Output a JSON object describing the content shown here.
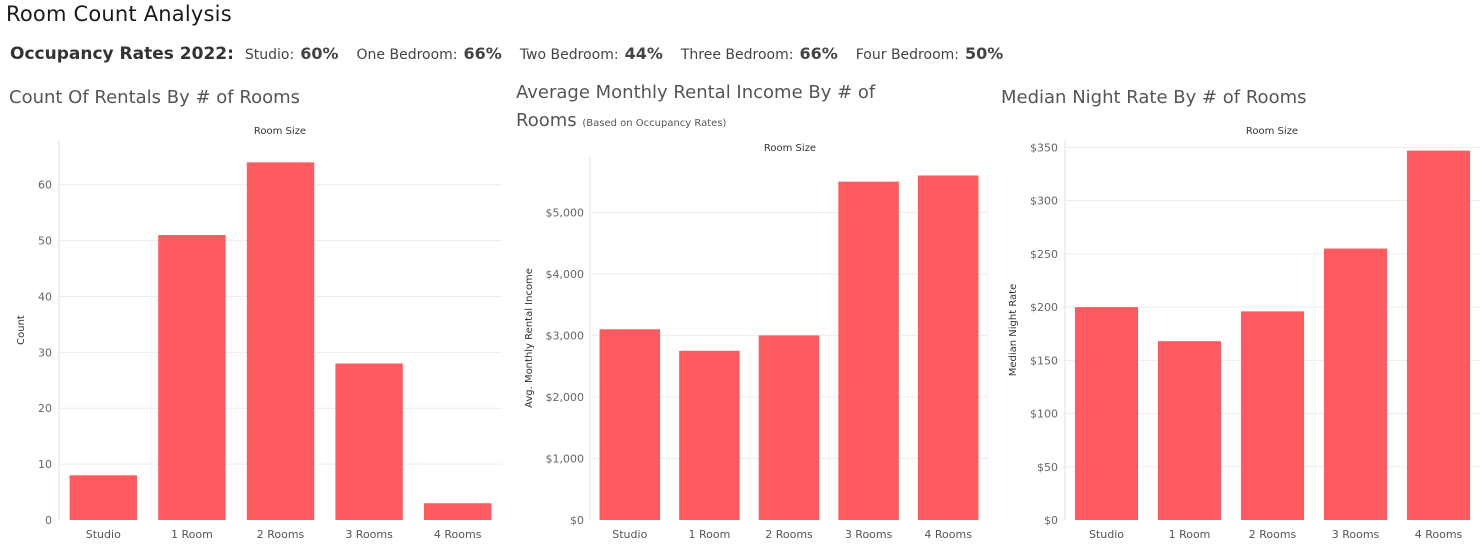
{
  "dashboard": {
    "title": "Room Count Analysis",
    "occupancy": {
      "heading": "Occupancy Rates 2022:",
      "items": [
        {
          "label": "Studio:",
          "value": "60%"
        },
        {
          "label": "One Bedroom:",
          "value": "66%"
        },
        {
          "label": "Two Bedroom:",
          "value": "44%"
        },
        {
          "label": "Three Bedroom:",
          "value": "66%"
        },
        {
          "label": "Four Bedroom:",
          "value": "50%"
        }
      ]
    }
  },
  "colors": {
    "bar": "#FF5A5F",
    "grid": "#ececec"
  },
  "chart_data": [
    {
      "type": "bar",
      "title": "Count Of Rentals By # of Rooms",
      "subtitle": "",
      "column_header": "Room Size",
      "ylabel": "Count",
      "categories": [
        "Studio",
        "1 Room",
        "2 Rooms",
        "3 Rooms",
        "4 Rooms"
      ],
      "values": [
        8,
        51,
        64,
        28,
        3
      ],
      "ylim": [
        0,
        68
      ],
      "yticks": [
        0,
        10,
        20,
        30,
        40,
        50,
        60
      ],
      "ytick_labels": [
        "0",
        "10",
        "20",
        "30",
        "40",
        "50",
        "60"
      ],
      "grid": true
    },
    {
      "type": "bar",
      "title": "Average  Monthly Rental Income By # of Rooms",
      "subtitle": "(Based on Occupancy Rates)",
      "column_header": "Room Size",
      "ylabel": "Avg. Monthly Rental Income",
      "categories": [
        "Studio",
        "1 Room",
        "2 Rooms",
        "3 Rooms",
        "4 Rooms"
      ],
      "values": [
        3100,
        2750,
        3000,
        5500,
        5600
      ],
      "ylim": [
        0,
        5900
      ],
      "yticks": [
        0,
        1000,
        2000,
        3000,
        4000,
        5000
      ],
      "ytick_labels": [
        "$0",
        "$1,000",
        "$2,000",
        "$3,000",
        "$4,000",
        "$5,000"
      ],
      "grid": true
    },
    {
      "type": "bar",
      "title": "Median Night Rate By # of Rooms",
      "subtitle": "",
      "column_header": "Room Size",
      "ylabel": "Median Night Rate",
      "categories": [
        "Studio",
        "1 Room",
        "2 Rooms",
        "3 Rooms",
        "4 Rooms"
      ],
      "values": [
        200,
        168,
        196,
        255,
        347
      ],
      "ylim": [
        0,
        357
      ],
      "yticks": [
        0,
        50,
        100,
        150,
        200,
        250,
        300,
        350
      ],
      "ytick_labels": [
        "$0",
        "$50",
        "$100",
        "$150",
        "$200",
        "$250",
        "$300",
        "$350"
      ],
      "grid": true
    }
  ]
}
